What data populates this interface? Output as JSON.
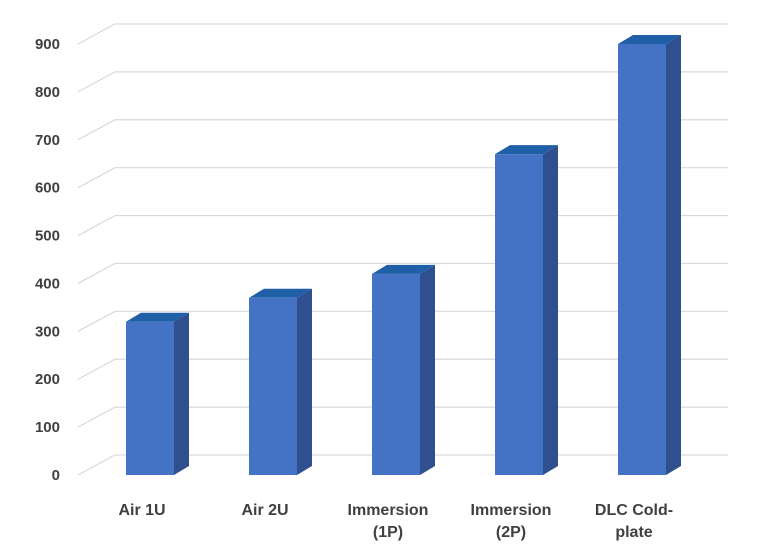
{
  "chart_data": {
    "type": "bar",
    "categories": [
      [
        "Air 1U"
      ],
      [
        "Air 2U"
      ],
      [
        "Immersion",
        "(1P)"
      ],
      [
        "Immersion",
        "(2P)"
      ],
      [
        "DLC Cold-",
        "plate"
      ]
    ],
    "values": [
      320,
      370,
      420,
      670,
      900
    ],
    "ylim": [
      0,
      900
    ],
    "yticks": [
      "0",
      "100",
      "200",
      "300",
      "400",
      "500",
      "600",
      "700",
      "800",
      "900"
    ],
    "grid": true,
    "style": "3d-column",
    "colors": {
      "front": "#4472c4",
      "side": "#2f4f8f",
      "top": "#1f5fa8",
      "grid": "#d9d9d9",
      "text": "#404040"
    }
  }
}
